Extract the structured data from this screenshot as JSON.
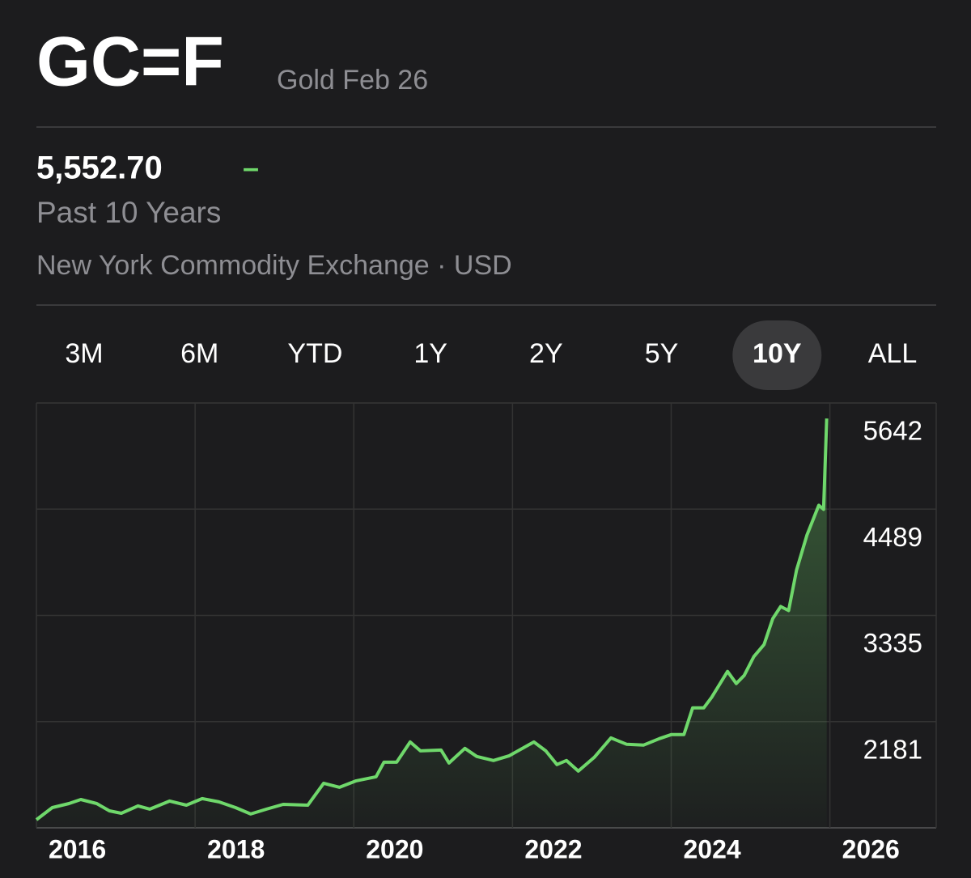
{
  "header": {
    "symbol": "GC=F",
    "name": "Gold Feb 26",
    "price": "5,552.70",
    "change": "–",
    "period": "Past 10 Years",
    "exchange": "New York Commodity Exchange · USD"
  },
  "tabs": {
    "items": [
      "3M",
      "6M",
      "YTD",
      "1Y",
      "2Y",
      "5Y",
      "10Y",
      "ALL"
    ],
    "selected": 6
  },
  "chart_data": {
    "type": "line",
    "color": "#6fd86b",
    "x": [
      2016.0,
      2016.2,
      2016.41,
      2016.56,
      2016.76,
      2016.92,
      2017.07,
      2017.28,
      2017.43,
      2017.68,
      2017.89,
      2018.09,
      2018.3,
      2018.51,
      2018.7,
      2018.9,
      2019.11,
      2019.42,
      2019.62,
      2019.82,
      2020.03,
      2020.28,
      2020.38,
      2020.54,
      2020.71,
      2020.84,
      2021.1,
      2021.2,
      2021.4,
      2021.55,
      2021.76,
      2021.96,
      2022.27,
      2022.42,
      2022.56,
      2022.68,
      2022.83,
      2023.03,
      2023.24,
      2023.44,
      2023.65,
      2023.85,
      2024.0,
      2024.16,
      2024.27,
      2024.41,
      2024.51,
      2024.71,
      2024.82,
      2024.92,
      2025.04,
      2025.17,
      2025.28,
      2025.38,
      2025.48,
      2025.58,
      2025.71,
      2025.86,
      2025.92,
      2025.96
    ],
    "values": [
      1115,
      1247,
      1291,
      1335,
      1291,
      1212,
      1185,
      1265,
      1230,
      1318,
      1273,
      1344,
      1309,
      1247,
      1177,
      1230,
      1282,
      1273,
      1511,
      1467,
      1538,
      1582,
      1740,
      1740,
      1960,
      1863,
      1872,
      1731,
      1890,
      1802,
      1758,
      1810,
      1960,
      1863,
      1714,
      1758,
      1643,
      1793,
      2004,
      1934,
      1925,
      1996,
      2040,
      2040,
      2330,
      2330,
      2445,
      2726,
      2594,
      2682,
      2885,
      3017,
      3299,
      3431,
      3387,
      3827,
      4206,
      4531,
      4487,
      5473
    ],
    "xlim": [
      2016,
      2027.34
    ],
    "xticks": [
      2016,
      2018,
      2020,
      2022,
      2024,
      2026
    ],
    "ylim": [
      1027,
      5642
    ],
    "yticks": [
      2181,
      3335,
      4489,
      5642
    ],
    "grid": true
  }
}
